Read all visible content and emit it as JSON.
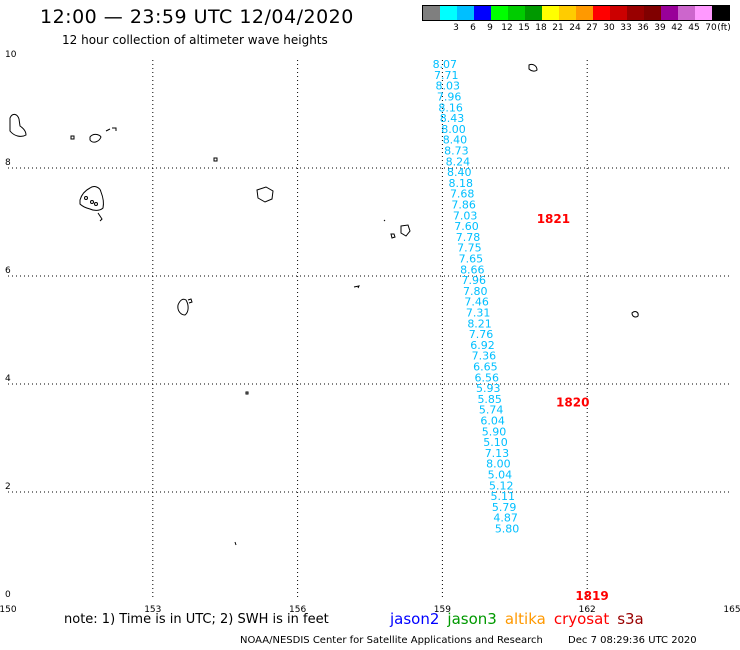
{
  "header": {
    "title": "12:00 — 23:59 UTC 12/04/2020",
    "subtitle": "12 hour collection of altimeter wave heights"
  },
  "legend": {
    "unit": "(ft)",
    "levels": [
      {
        "label": "",
        "color": "#7f7f7f"
      },
      {
        "label": "3",
        "color": "#00ffff"
      },
      {
        "label": "6",
        "color": "#00bfff"
      },
      {
        "label": "9",
        "color": "#0000ff"
      },
      {
        "label": "12",
        "color": "#00ff00"
      },
      {
        "label": "15",
        "color": "#00cc00"
      },
      {
        "label": "18",
        "color": "#009900"
      },
      {
        "label": "21",
        "color": "#ffff00"
      },
      {
        "label": "24",
        "color": "#ffcc00"
      },
      {
        "label": "27",
        "color": "#ff9900"
      },
      {
        "label": "30",
        "color": "#ff0000"
      },
      {
        "label": "33",
        "color": "#cc0000"
      },
      {
        "label": "36",
        "color": "#990000"
      },
      {
        "label": "39",
        "color": "#800000"
      },
      {
        "label": "42",
        "color": "#990099"
      },
      {
        "label": "45",
        "color": "#cc66cc"
      },
      {
        "label": "70",
        "color": "#ff99ff"
      },
      {
        "label": "",
        "color": "#000000"
      }
    ]
  },
  "map": {
    "lon_range": [
      150,
      165
    ],
    "lat_range": [
      0,
      10
    ],
    "lon_ticks": [
      "150",
      "153",
      "156",
      "159",
      "162",
      "165"
    ],
    "lat_ticks": [
      "0",
      "2",
      "4",
      "6",
      "8",
      "10"
    ],
    "track_color": "#00bfff",
    "pass_color": "#ff0000",
    "wave_heights": [
      {
        "lon": 159.05,
        "lat": 9.85,
        "value": "8.07"
      },
      {
        "lon": 159.08,
        "lat": 9.65,
        "value": "7.71"
      },
      {
        "lon": 159.11,
        "lat": 9.45,
        "value": "8.03"
      },
      {
        "lon": 159.14,
        "lat": 9.25,
        "value": "7.96"
      },
      {
        "lon": 159.17,
        "lat": 9.05,
        "value": "8.16"
      },
      {
        "lon": 159.2,
        "lat": 8.85,
        "value": "8.43"
      },
      {
        "lon": 159.23,
        "lat": 8.65,
        "value": "8.00"
      },
      {
        "lon": 159.26,
        "lat": 8.45,
        "value": "8.40"
      },
      {
        "lon": 159.29,
        "lat": 8.25,
        "value": "8.73"
      },
      {
        "lon": 159.32,
        "lat": 8.05,
        "value": "8.24"
      },
      {
        "lon": 159.35,
        "lat": 7.85,
        "value": "8.40"
      },
      {
        "lon": 159.38,
        "lat": 7.65,
        "value": "8.18"
      },
      {
        "lon": 159.41,
        "lat": 7.45,
        "value": "7.68"
      },
      {
        "lon": 159.44,
        "lat": 7.25,
        "value": "7.86"
      },
      {
        "lon": 159.47,
        "lat": 7.05,
        "value": "7.03"
      },
      {
        "lon": 159.5,
        "lat": 6.85,
        "value": "7.60"
      },
      {
        "lon": 159.53,
        "lat": 6.65,
        "value": "7.78"
      },
      {
        "lon": 159.56,
        "lat": 6.45,
        "value": "7.75"
      },
      {
        "lon": 159.59,
        "lat": 6.25,
        "value": "7.65"
      },
      {
        "lon": 159.62,
        "lat": 6.05,
        "value": "8.66"
      },
      {
        "lon": 159.65,
        "lat": 5.85,
        "value": "7.96"
      },
      {
        "lon": 159.68,
        "lat": 5.65,
        "value": "7.80"
      },
      {
        "lon": 159.71,
        "lat": 5.45,
        "value": "7.46"
      },
      {
        "lon": 159.74,
        "lat": 5.25,
        "value": "7.31"
      },
      {
        "lon": 159.77,
        "lat": 5.05,
        "value": "8.21"
      },
      {
        "lon": 159.8,
        "lat": 4.85,
        "value": "7.76"
      },
      {
        "lon": 159.83,
        "lat": 4.65,
        "value": "6.92"
      },
      {
        "lon": 159.86,
        "lat": 4.45,
        "value": "7.36"
      },
      {
        "lon": 159.89,
        "lat": 4.25,
        "value": "6.65"
      },
      {
        "lon": 159.92,
        "lat": 4.05,
        "value": "6.56"
      },
      {
        "lon": 159.95,
        "lat": 3.85,
        "value": "5.93"
      },
      {
        "lon": 159.98,
        "lat": 3.65,
        "value": "5.85"
      },
      {
        "lon": 160.01,
        "lat": 3.45,
        "value": "5.74"
      },
      {
        "lon": 160.04,
        "lat": 3.25,
        "value": "6.04"
      },
      {
        "lon": 160.07,
        "lat": 3.05,
        "value": "5.90"
      },
      {
        "lon": 160.1,
        "lat": 2.85,
        "value": "5.10"
      },
      {
        "lon": 160.13,
        "lat": 2.65,
        "value": "7.13"
      },
      {
        "lon": 160.16,
        "lat": 2.45,
        "value": "8.00"
      },
      {
        "lon": 160.19,
        "lat": 2.25,
        "value": "5.04"
      },
      {
        "lon": 160.22,
        "lat": 2.05,
        "value": "5.12"
      },
      {
        "lon": 160.25,
        "lat": 1.85,
        "value": "5.11"
      },
      {
        "lon": 160.28,
        "lat": 1.65,
        "value": "5.79"
      },
      {
        "lon": 160.31,
        "lat": 1.45,
        "value": "4.87"
      },
      {
        "lon": 160.34,
        "lat": 1.25,
        "value": "5.80"
      }
    ],
    "passes": [
      {
        "lon": 161.3,
        "lat": 6.98,
        "label": "1821"
      },
      {
        "lon": 161.7,
        "lat": 3.58,
        "label": "1820"
      },
      {
        "lon": 162.1,
        "lat": 0.0,
        "label": "1819"
      }
    ]
  },
  "note": "note:  1) Time is in UTC;  2) SWH is in feet",
  "satellites": [
    {
      "name": "jason2",
      "color": "#0000ff"
    },
    {
      "name": "jason3",
      "color": "#009900"
    },
    {
      "name": "altika",
      "color": "#ff9900"
    },
    {
      "name": "cryosat",
      "color": "#ff0000"
    },
    {
      "name": "s3a",
      "color": "#990000"
    }
  ],
  "footer": {
    "credit": "NOAA/NESDIS Center for Satellite Applications and Research",
    "timestamp": "Dec  7 08:29:36 UTC 2020"
  }
}
